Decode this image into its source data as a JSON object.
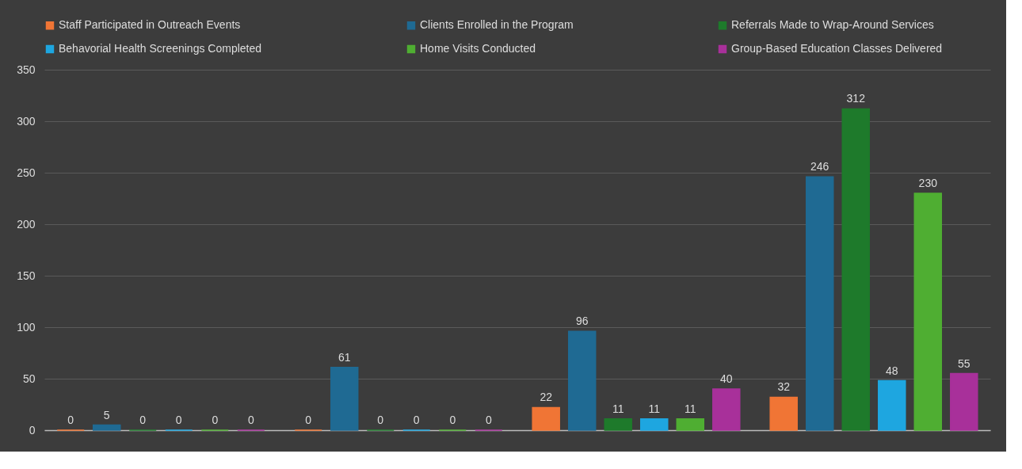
{
  "chart_data": {
    "type": "bar",
    "categories": [
      null,
      null,
      null,
      null
    ],
    "series": [
      {
        "name": "Staff Participated in Outreach Events",
        "color": "#f07535",
        "values": [
          0,
          0,
          22,
          32
        ]
      },
      {
        "name": "Clients Enrolled in the Program",
        "color": "#1f6a93",
        "values": [
          5,
          61,
          96,
          246
        ]
      },
      {
        "name": "Referrals Made to Wrap-Around Services",
        "color": "#1e7a2b",
        "values": [
          0,
          0,
          11,
          312
        ]
      },
      {
        "name": "Behavorial Health Screenings Completed",
        "color": "#1ea6e0",
        "values": [
          0,
          0,
          11,
          48
        ]
      },
      {
        "name": "Home Visits Conducted",
        "color": "#4fae32",
        "values": [
          0,
          0,
          11,
          230
        ]
      },
      {
        "name": "Group-Based Education Classes Delivered",
        "color": "#a8309a",
        "values": [
          0,
          0,
          40,
          55
        ]
      }
    ],
    "ylim": [
      0,
      350
    ],
    "yticks": [
      0,
      50,
      100,
      150,
      200,
      250,
      300,
      350
    ],
    "grid": "y",
    "legend": "top",
    "data_labels": true,
    "tick_labels": "y"
  }
}
